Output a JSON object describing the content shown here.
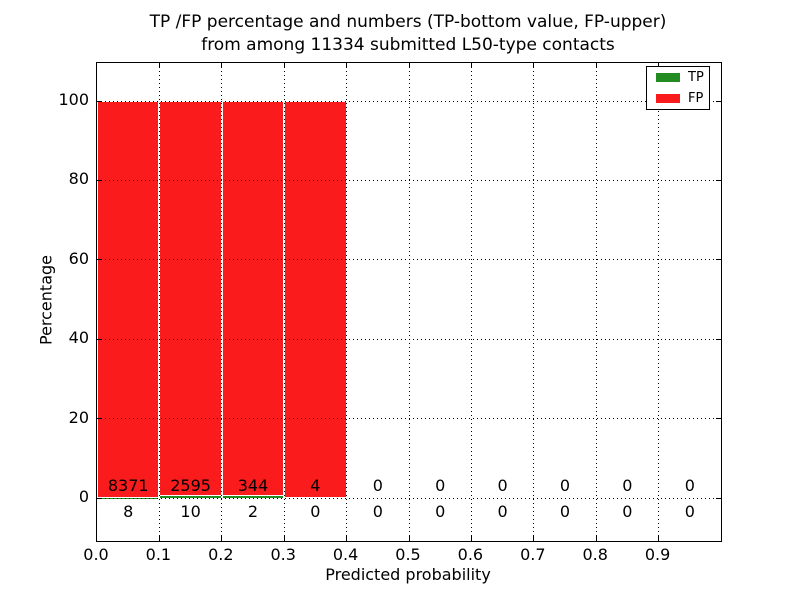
{
  "figure": {
    "title_line1": "TP /FP percentage and numbers (TP-bottom value, FP-upper)",
    "title_line2": "from among 11334 submitted L50-type contacts",
    "xlabel": "Predicted probability",
    "ylabel": "Percentage"
  },
  "legend": {
    "position": "upper right",
    "items": [
      {
        "label": "TP",
        "color": "#228b22"
      },
      {
        "label": "FP",
        "color": "#fa1c1c"
      }
    ]
  },
  "chart_data": {
    "type": "bar",
    "stacked": true,
    "title": "TP /FP percentage and numbers (TP-bottom value, FP-upper) from among 11334 submitted L50-type contacts",
    "xlabel": "Predicted probability",
    "ylabel": "Percentage",
    "xlim": [
      0.0,
      1.0
    ],
    "ylim": [
      -11,
      110
    ],
    "grid": "dotted",
    "legend_position": "upper right",
    "bin_width": 0.1,
    "bin_starts": [
      0.0,
      0.1,
      0.2,
      0.3,
      0.4,
      0.5,
      0.6,
      0.7,
      0.8,
      0.9
    ],
    "x_tick_labels": [
      "0.0",
      "0.1",
      "0.2",
      "0.3",
      "0.4",
      "0.5",
      "0.6",
      "0.7",
      "0.8",
      "0.9"
    ],
    "y_ticks": [
      0,
      20,
      40,
      60,
      80,
      100
    ],
    "series": [
      {
        "name": "TP",
        "color": "#228b22",
        "values": [
          8,
          10,
          2,
          0,
          0,
          0,
          0,
          0,
          0,
          0
        ]
      },
      {
        "name": "FP",
        "color": "#fa1c1c",
        "values": [
          8371,
          2595,
          344,
          4,
          0,
          0,
          0,
          0,
          0,
          0
        ]
      }
    ]
  }
}
